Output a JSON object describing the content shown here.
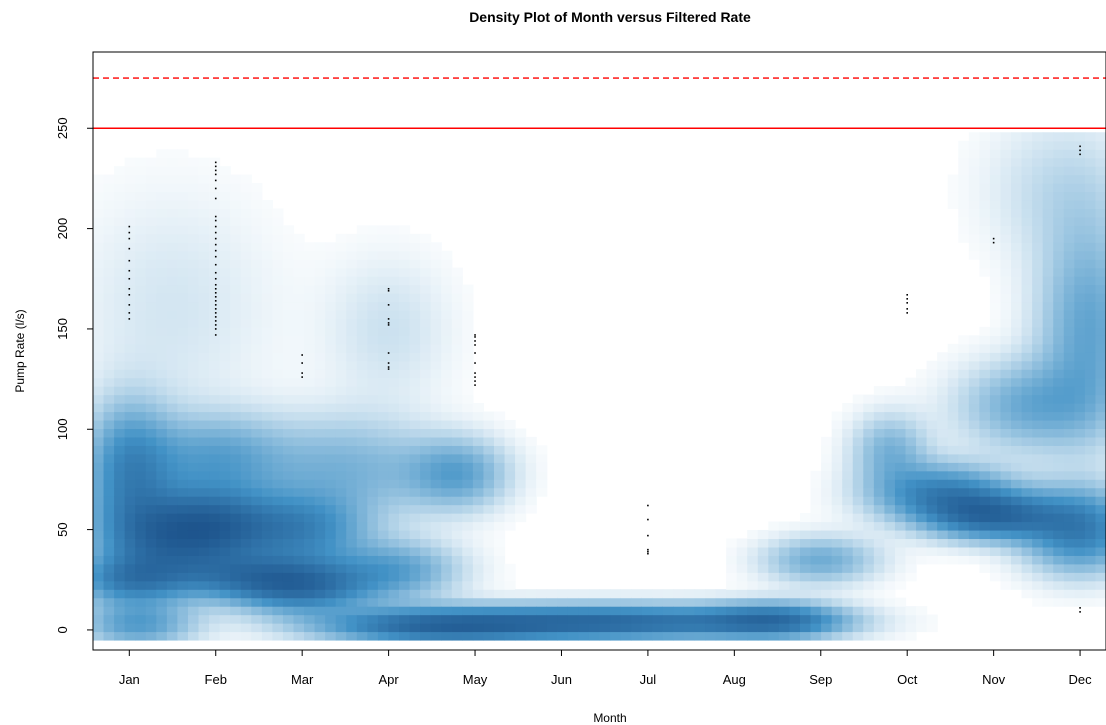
{
  "chart_data": {
    "type": "heatmap",
    "title": "Density Plot of Month versus Filtered Rate",
    "xlabel": "Month",
    "ylabel": "Pump Rate (l/s)",
    "categories": [
      "Jan",
      "Feb",
      "Mar",
      "Apr",
      "May",
      "Jun",
      "Jul",
      "Aug",
      "Sep",
      "Oct",
      "Nov",
      "Dec"
    ],
    "xlim": [
      0.58,
      12.3
    ],
    "ylim": [
      -10,
      288
    ],
    "y_ticks": [
      "0",
      "50",
      "100",
      "150",
      "200",
      "250"
    ],
    "y_tick_values": [
      0,
      50,
      100,
      150,
      200,
      250
    ],
    "reference_lines": [
      {
        "value": 250,
        "style": "solid",
        "color": "#ff0000"
      },
      {
        "value": 275,
        "style": "dashed",
        "color": "#ff0000"
      }
    ],
    "colormap": [
      "#ffffff",
      "#08306b"
    ],
    "density_blobs": [
      {
        "x": 1.0,
        "y": 80,
        "sx": 0.35,
        "sy": 22,
        "w": 0.65
      },
      {
        "x": 1.4,
        "y": 45,
        "sx": 0.55,
        "sy": 15,
        "w": 0.75
      },
      {
        "x": 1.0,
        "y": 25,
        "sx": 0.45,
        "sy": 8,
        "w": 0.6
      },
      {
        "x": 1.1,
        "y": 3,
        "sx": 0.45,
        "sy": 8,
        "w": 0.5
      },
      {
        "x": 2.0,
        "y": 52,
        "sx": 0.5,
        "sy": 12,
        "w": 0.75
      },
      {
        "x": 2.0,
        "y": 85,
        "sx": 0.55,
        "sy": 15,
        "w": 0.45
      },
      {
        "x": 2.3,
        "y": 27,
        "sx": 0.55,
        "sy": 8,
        "w": 0.5
      },
      {
        "x": 3.0,
        "y": 22,
        "sx": 0.55,
        "sy": 9,
        "w": 0.85
      },
      {
        "x": 3.0,
        "y": 50,
        "sx": 0.5,
        "sy": 12,
        "w": 0.6
      },
      {
        "x": 3.5,
        "y": 80,
        "sx": 0.7,
        "sy": 18,
        "w": 0.35
      },
      {
        "x": 4.1,
        "y": 30,
        "sx": 0.5,
        "sy": 10,
        "w": 0.45
      },
      {
        "x": 4.8,
        "y": 78,
        "sx": 0.4,
        "sy": 12,
        "w": 0.45
      },
      {
        "x": 4.5,
        "y": 2,
        "sx": 0.9,
        "sy": 6,
        "w": 0.85
      },
      {
        "x": 6.6,
        "y": 4,
        "sx": 1.3,
        "sy": 6,
        "w": 0.95
      },
      {
        "x": 8.5,
        "y": 5,
        "sx": 0.55,
        "sy": 6,
        "w": 0.7
      },
      {
        "x": 9.0,
        "y": 35,
        "sx": 0.45,
        "sy": 8,
        "w": 0.4
      },
      {
        "x": 9.8,
        "y": 90,
        "sx": 0.3,
        "sy": 12,
        "w": 0.35
      },
      {
        "x": 10.4,
        "y": 68,
        "sx": 0.55,
        "sy": 10,
        "w": 0.7
      },
      {
        "x": 11.0,
        "y": 57,
        "sx": 0.5,
        "sy": 8,
        "w": 0.85
      },
      {
        "x": 11.4,
        "y": 112,
        "sx": 0.55,
        "sy": 15,
        "w": 0.4
      },
      {
        "x": 12.0,
        "y": 50,
        "sx": 0.45,
        "sy": 14,
        "w": 0.75
      },
      {
        "x": 12.1,
        "y": 150,
        "sx": 0.4,
        "sy": 35,
        "w": 0.45
      },
      {
        "x": 11.8,
        "y": 220,
        "sx": 0.6,
        "sy": 25,
        "w": 0.15
      },
      {
        "x": 1.5,
        "y": 160,
        "sx": 0.8,
        "sy": 40,
        "w": 0.1
      },
      {
        "x": 4.0,
        "y": 150,
        "sx": 0.5,
        "sy": 25,
        "w": 0.12
      }
    ],
    "points": [
      {
        "month": "Jan",
        "x": 1,
        "y": [
          155,
          158,
          162,
          167,
          170,
          175,
          179,
          184,
          190,
          195,
          198,
          201
        ]
      },
      {
        "month": "Feb",
        "x": 2,
        "y": [
          147,
          150,
          152,
          154,
          156,
          158,
          160,
          162,
          164,
          166,
          168,
          170,
          172,
          175,
          178,
          182,
          186,
          189,
          192,
          195,
          198,
          201,
          204,
          206,
          215,
          220,
          224,
          227,
          229,
          231,
          233
        ]
      },
      {
        "month": "Mar",
        "x": 3,
        "y": [
          126,
          128,
          133,
          137
        ]
      },
      {
        "month": "Apr",
        "x": 4,
        "y": [
          130,
          131,
          133,
          138,
          152,
          153,
          155,
          162,
          169,
          170
        ]
      },
      {
        "month": "May",
        "x": 5,
        "y": [
          122,
          124,
          126,
          128,
          133,
          138,
          142,
          144,
          146,
          147
        ]
      },
      {
        "month": "Jul",
        "x": 7,
        "y": [
          38,
          39,
          40,
          47,
          55,
          62
        ]
      },
      {
        "month": "Oct",
        "x": 10,
        "y": [
          158,
          160,
          163,
          165,
          167
        ]
      },
      {
        "month": "Nov",
        "x": 11,
        "y": [
          193,
          195
        ]
      },
      {
        "month": "Dec",
        "x": 12,
        "y": [
          9,
          11,
          237,
          239,
          241
        ]
      }
    ]
  }
}
